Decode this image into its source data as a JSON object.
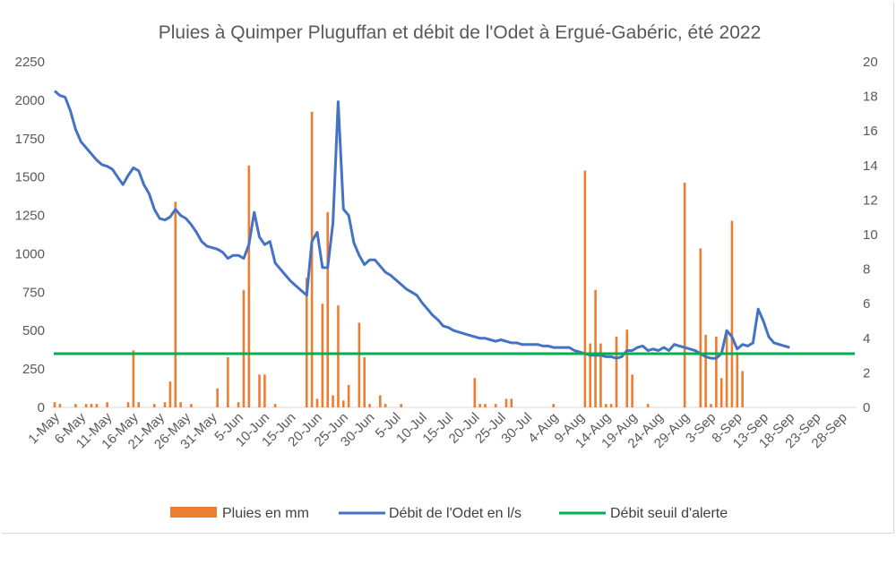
{
  "chart_data": {
    "type": "bar",
    "title": "Pluies à Quimper Pluguffan et débit de l'Odet à Ergué-Gabéric, été 2022",
    "xlabel": "",
    "ylabel": "",
    "x_tick_labels": [
      "1-May",
      "6-May",
      "11-May",
      "16-May",
      "21-May",
      "26-May",
      "31-May",
      "5-Jun",
      "10-Jun",
      "15-Jun",
      "20-Jun",
      "25-Jun",
      "30-Jun",
      "5-Jul",
      "10-Jul",
      "15-Jul",
      "20-Jul",
      "25-Jul",
      "30-Jul",
      "4-Aug",
      "9-Aug",
      "14-Aug",
      "19-Aug",
      "24-Aug",
      "29-Aug",
      "3-Sep",
      "8-Sep",
      "13-Sep",
      "18-Sep",
      "23-Sep",
      "28-Sep"
    ],
    "y_left": {
      "min": 0,
      "max": 2250,
      "step": 250
    },
    "y_right": {
      "min": 0,
      "max": 20,
      "step": 2
    },
    "legend_position": "bottom",
    "grid": false,
    "series": [
      {
        "name": "Pluies en mm",
        "type": "bar",
        "axis": "right",
        "color": "#ed7d31",
        "points": [
          [
            0,
            0.3
          ],
          [
            1,
            0.2
          ],
          [
            4,
            0.2
          ],
          [
            6,
            0.2
          ],
          [
            7,
            0.2
          ],
          [
            8,
            0.2
          ],
          [
            10,
            0.3
          ],
          [
            14,
            0.3
          ],
          [
            15,
            3.3
          ],
          [
            16,
            0.3
          ],
          [
            19,
            0.2
          ],
          [
            21,
            0.3
          ],
          [
            22,
            1.5
          ],
          [
            23,
            11.9
          ],
          [
            24,
            0.3
          ],
          [
            26,
            0.2
          ],
          [
            31,
            1.1
          ],
          [
            33,
            2.9
          ],
          [
            35,
            0.3
          ],
          [
            36,
            6.8
          ],
          [
            37,
            14.0
          ],
          [
            39,
            1.9
          ],
          [
            40,
            1.9
          ],
          [
            42,
            0.2
          ],
          [
            48,
            7.5
          ],
          [
            49,
            17.1
          ],
          [
            50,
            0.5
          ],
          [
            51,
            6.0
          ],
          [
            52,
            11.3
          ],
          [
            53,
            0.7
          ],
          [
            54,
            5.9
          ],
          [
            55,
            0.4
          ],
          [
            56,
            1.3
          ],
          [
            58,
            4.9
          ],
          [
            59,
            2.9
          ],
          [
            60,
            0.2
          ],
          [
            62,
            0.7
          ],
          [
            63,
            0.2
          ],
          [
            66,
            0.2
          ],
          [
            80,
            1.7
          ],
          [
            81,
            0.2
          ],
          [
            82,
            0.2
          ],
          [
            84,
            0.2
          ],
          [
            86,
            0.5
          ],
          [
            87,
            0.5
          ],
          [
            95,
            0.2
          ],
          [
            101,
            13.7
          ],
          [
            102,
            3.7
          ],
          [
            103,
            6.8
          ],
          [
            104,
            3.7
          ],
          [
            105,
            0.2
          ],
          [
            106,
            0.2
          ],
          [
            107,
            4.1
          ],
          [
            109,
            4.5
          ],
          [
            110,
            1.9
          ],
          [
            113,
            0.2
          ],
          [
            120,
            13.0
          ],
          [
            123,
            9.2
          ],
          [
            124,
            4.2
          ],
          [
            125,
            0.2
          ],
          [
            126,
            4.1
          ],
          [
            127,
            1.7
          ],
          [
            128,
            4.4
          ],
          [
            129,
            10.8
          ],
          [
            130,
            3.2
          ],
          [
            131,
            2.1
          ]
        ]
      },
      {
        "name": "Débit de l'Odet en l/s",
        "type": "line",
        "axis": "left",
        "color": "#4472c4",
        "points": [
          [
            0,
            2060
          ],
          [
            1,
            2030
          ],
          [
            2,
            2020
          ],
          [
            3,
            1930
          ],
          [
            4,
            1810
          ],
          [
            5,
            1730
          ],
          [
            6,
            1690
          ],
          [
            7,
            1650
          ],
          [
            8,
            1610
          ],
          [
            9,
            1580
          ],
          [
            10,
            1570
          ],
          [
            11,
            1550
          ],
          [
            12,
            1500
          ],
          [
            13,
            1450
          ],
          [
            14,
            1510
          ],
          [
            15,
            1560
          ],
          [
            16,
            1540
          ],
          [
            17,
            1450
          ],
          [
            18,
            1390
          ],
          [
            19,
            1290
          ],
          [
            20,
            1230
          ],
          [
            21,
            1220
          ],
          [
            22,
            1240
          ],
          [
            23,
            1290
          ],
          [
            24,
            1250
          ],
          [
            25,
            1230
          ],
          [
            26,
            1190
          ],
          [
            27,
            1140
          ],
          [
            28,
            1080
          ],
          [
            29,
            1050
          ],
          [
            30,
            1040
          ],
          [
            31,
            1030
          ],
          [
            32,
            1010
          ],
          [
            33,
            970
          ],
          [
            34,
            990
          ],
          [
            35,
            990
          ],
          [
            36,
            970
          ],
          [
            37,
            1060
          ],
          [
            38,
            1270
          ],
          [
            39,
            1110
          ],
          [
            40,
            1060
          ],
          [
            41,
            1080
          ],
          [
            42,
            940
          ],
          [
            43,
            900
          ],
          [
            44,
            860
          ],
          [
            45,
            820
          ],
          [
            46,
            790
          ],
          [
            47,
            760
          ],
          [
            48,
            730
          ],
          [
            49,
            1080
          ],
          [
            50,
            1140
          ],
          [
            51,
            910
          ],
          [
            52,
            910
          ],
          [
            53,
            1200
          ],
          [
            54,
            1990
          ],
          [
            55,
            1290
          ],
          [
            56,
            1250
          ],
          [
            57,
            1070
          ],
          [
            58,
            990
          ],
          [
            59,
            930
          ],
          [
            60,
            960
          ],
          [
            61,
            960
          ],
          [
            62,
            920
          ],
          [
            63,
            880
          ],
          [
            64,
            860
          ],
          [
            65,
            830
          ],
          [
            66,
            800
          ],
          [
            67,
            770
          ],
          [
            68,
            750
          ],
          [
            69,
            730
          ],
          [
            70,
            680
          ],
          [
            71,
            640
          ],
          [
            72,
            600
          ],
          [
            73,
            570
          ],
          [
            74,
            530
          ],
          [
            75,
            520
          ],
          [
            76,
            500
          ],
          [
            77,
            490
          ],
          [
            78,
            480
          ],
          [
            79,
            470
          ],
          [
            80,
            460
          ],
          [
            81,
            450
          ],
          [
            82,
            450
          ],
          [
            83,
            440
          ],
          [
            84,
            430
          ],
          [
            85,
            440
          ],
          [
            86,
            430
          ],
          [
            87,
            420
          ],
          [
            88,
            420
          ],
          [
            89,
            410
          ],
          [
            90,
            410
          ],
          [
            91,
            410
          ],
          [
            92,
            410
          ],
          [
            93,
            400
          ],
          [
            94,
            400
          ],
          [
            95,
            390
          ],
          [
            96,
            390
          ],
          [
            97,
            390
          ],
          [
            98,
            390
          ],
          [
            99,
            370
          ],
          [
            100,
            360
          ],
          [
            101,
            350
          ],
          [
            102,
            340
          ],
          [
            103,
            340
          ],
          [
            104,
            340
          ],
          [
            105,
            330
          ],
          [
            106,
            330
          ],
          [
            107,
            320
          ],
          [
            108,
            330
          ],
          [
            109,
            370
          ],
          [
            110,
            370
          ],
          [
            111,
            390
          ],
          [
            112,
            400
          ],
          [
            113,
            370
          ],
          [
            114,
            380
          ],
          [
            115,
            370
          ],
          [
            116,
            390
          ],
          [
            117,
            370
          ],
          [
            118,
            410
          ],
          [
            119,
            400
          ],
          [
            120,
            390
          ],
          [
            121,
            380
          ],
          [
            122,
            370
          ],
          [
            123,
            350
          ],
          [
            124,
            330
          ],
          [
            125,
            320
          ],
          [
            126,
            320
          ],
          [
            127,
            350
          ],
          [
            128,
            500
          ],
          [
            129,
            460
          ],
          [
            130,
            380
          ],
          [
            131,
            410
          ],
          [
            132,
            400
          ],
          [
            133,
            420
          ],
          [
            134,
            640
          ],
          [
            135,
            560
          ],
          [
            136,
            460
          ],
          [
            137,
            420
          ],
          [
            138,
            410
          ],
          [
            139,
            400
          ],
          [
            140,
            390
          ]
        ]
      },
      {
        "name": "Débit seuil d'alerte",
        "type": "line",
        "axis": "left",
        "color": "#00b050",
        "points": [
          [
            0,
            350
          ],
          [
            150,
            350
          ]
        ]
      }
    ]
  }
}
